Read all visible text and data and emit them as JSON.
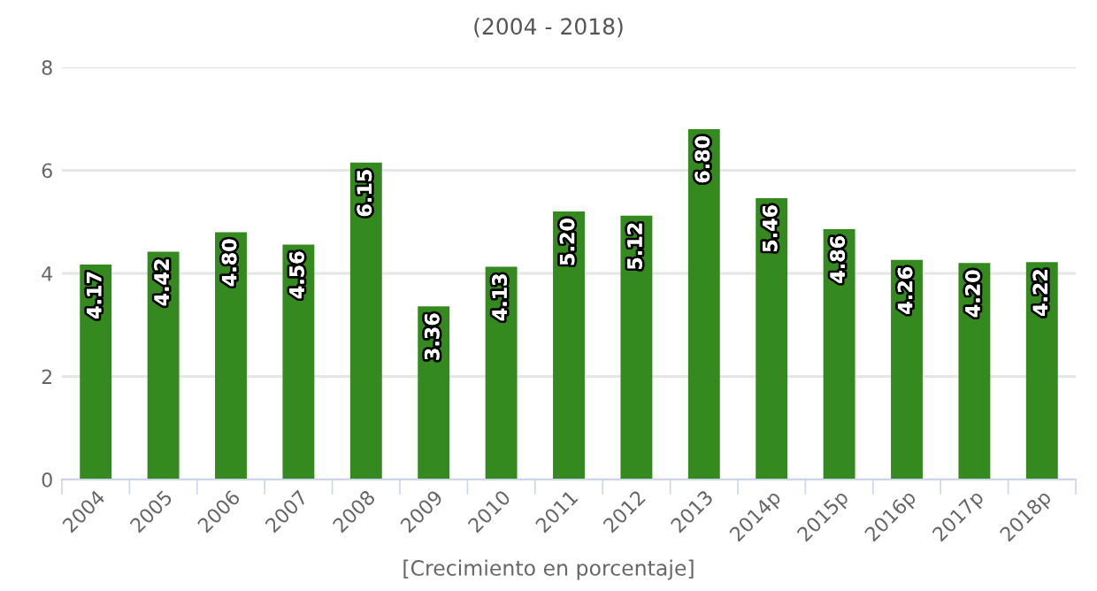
{
  "chart_data": {
    "type": "bar",
    "title": "(2004 - 2018)",
    "xlabel": "[Crecimiento en porcentaje]",
    "categories": [
      "2004",
      "2005",
      "2006",
      "2007",
      "2008",
      "2009",
      "2010",
      "2011",
      "2012",
      "2013",
      "2014p",
      "2015p",
      "2016p",
      "2017p",
      "2018p"
    ],
    "values": [
      4.17,
      4.42,
      4.8,
      4.56,
      6.15,
      3.36,
      4.13,
      5.2,
      5.12,
      6.8,
      5.46,
      4.86,
      4.26,
      4.2,
      4.22
    ],
    "value_labels": [
      "4.17",
      "4.42",
      "4.80",
      "4.56",
      "6.15",
      "3.36",
      "4.13",
      "5.20",
      "5.12",
      "6.80",
      "5.46",
      "4.86",
      "4.26",
      "4.20",
      "4.22"
    ],
    "color": "#358a1f",
    "ylim": [
      0,
      8
    ],
    "yticks": [
      0,
      2,
      4,
      6,
      8
    ],
    "grid": "y",
    "legend": false
  }
}
